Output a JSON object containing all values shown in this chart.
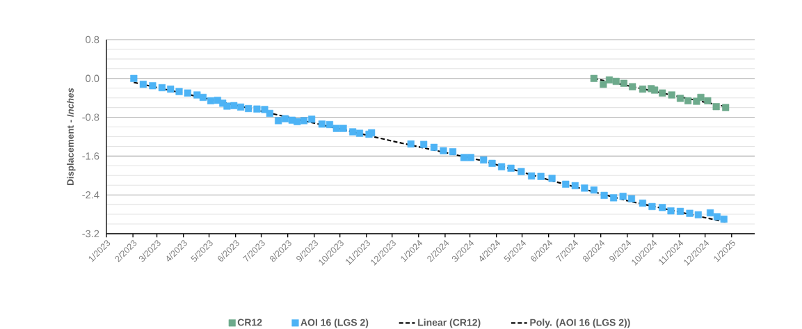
{
  "chart_data": {
    "type": "scatter",
    "ylabel": "Displacement - *Inches*",
    "xlim": [
      "2023-01-01",
      "2025-01-28"
    ],
    "xticks": [
      {
        "value": "2023-01-01",
        "label": "1/2023"
      },
      {
        "value": "2023-02-01",
        "label": "2/2023"
      },
      {
        "value": "2023-03-01",
        "label": "3/2023"
      },
      {
        "value": "2023-04-01",
        "label": "4/2023"
      },
      {
        "value": "2023-05-01",
        "label": "5/2023"
      },
      {
        "value": "2023-06-01",
        "label": "6/2023"
      },
      {
        "value": "2023-07-01",
        "label": "7/2023"
      },
      {
        "value": "2023-08-01",
        "label": "8/2023"
      },
      {
        "value": "2023-09-01",
        "label": "9/2023"
      },
      {
        "value": "2023-10-01",
        "label": "10/2023"
      },
      {
        "value": "2023-11-01",
        "label": "11/2023"
      },
      {
        "value": "2023-12-01",
        "label": "12/2023"
      },
      {
        "value": "2024-01-01",
        "label": "1/2024"
      },
      {
        "value": "2024-02-01",
        "label": "2/2024"
      },
      {
        "value": "2024-03-01",
        "label": "3/2024"
      },
      {
        "value": "2024-04-01",
        "label": "4/2024"
      },
      {
        "value": "2024-05-01",
        "label": "5/2024"
      },
      {
        "value": "2024-06-01",
        "label": "6/2024"
      },
      {
        "value": "2024-07-01",
        "label": "7/2024"
      },
      {
        "value": "2024-08-01",
        "label": "8/2024"
      },
      {
        "value": "2024-09-01",
        "label": "9/2024"
      },
      {
        "value": "2024-10-01",
        "label": "10/2024"
      },
      {
        "value": "2024-11-01",
        "label": "11/2024"
      },
      {
        "value": "2024-12-01",
        "label": "12/2024"
      },
      {
        "value": "2025-01-01",
        "label": "1/2025"
      }
    ],
    "ylim": [
      -3.2,
      0.8
    ],
    "yticks": [
      {
        "value": -3.2,
        "label": "-3.2"
      },
      {
        "value": -2.4,
        "label": "-2.4"
      },
      {
        "value": -1.6,
        "label": "-1.6"
      },
      {
        "value": -0.8,
        "label": "-0.8"
      },
      {
        "value": 0,
        "label": "0.0"
      },
      {
        "value": 0.8,
        "label": "0.8"
      }
    ],
    "grid": "y",
    "legend": "bottom",
    "series": [
      {
        "name": "CR12",
        "marker": "square",
        "color": "#6daa8c",
        "x": [
          "2024-07-24",
          "2024-08-04",
          "2024-08-11",
          "2024-08-19",
          "2024-08-28",
          "2024-09-07",
          "2024-09-19",
          "2024-09-29",
          "2024-10-03",
          "2024-10-12",
          "2024-10-23",
          "2024-11-02",
          "2024-11-11",
          "2024-11-21",
          "2024-11-26",
          "2024-12-04",
          "2024-12-14",
          "2024-12-25"
        ],
        "values": [
          0.0,
          -0.12,
          -0.03,
          -0.06,
          -0.1,
          -0.17,
          -0.22,
          -0.21,
          -0.24,
          -0.3,
          -0.34,
          -0.41,
          -0.46,
          -0.47,
          -0.39,
          -0.46,
          -0.58,
          -0.6
        ]
      },
      {
        "name": "AOI 16 (LGS 2)",
        "marker": "square",
        "color": "#4db3f5",
        "x": [
          "2023-02-02",
          "2023-02-13",
          "2023-02-24",
          "2023-03-07",
          "2023-03-17",
          "2023-03-27",
          "2023-04-06",
          "2023-04-17",
          "2023-04-24",
          "2023-05-03",
          "2023-05-11",
          "2023-05-17",
          "2023-05-22",
          "2023-05-30",
          "2023-06-07",
          "2023-06-16",
          "2023-06-26",
          "2023-07-05",
          "2023-07-11",
          "2023-07-21",
          "2023-07-29",
          "2023-08-06",
          "2023-08-12",
          "2023-08-20",
          "2023-08-29",
          "2023-09-10",
          "2023-09-19",
          "2023-09-27",
          "2023-10-05",
          "2023-10-16",
          "2023-10-24",
          "2023-11-04",
          "2023-11-07",
          "2023-12-23",
          "2024-01-07",
          "2024-01-19",
          "2024-01-30",
          "2024-02-10",
          "2024-02-23",
          "2024-03-02",
          "2024-03-17",
          "2024-03-27",
          "2024-04-07",
          "2024-04-18",
          "2024-04-30",
          "2024-05-12",
          "2024-05-23",
          "2024-06-05",
          "2024-06-21",
          "2024-07-02",
          "2024-07-13",
          "2024-07-24",
          "2024-08-05",
          "2024-08-16",
          "2024-08-27",
          "2024-09-06",
          "2024-09-19",
          "2024-09-30",
          "2024-10-12",
          "2024-10-22",
          "2024-11-02",
          "2024-11-13",
          "2024-11-23",
          "2024-12-07",
          "2024-12-15",
          "2024-12-23"
        ],
        "values": [
          0.0,
          -0.12,
          -0.15,
          -0.19,
          -0.22,
          -0.27,
          -0.3,
          -0.34,
          -0.39,
          -0.46,
          -0.45,
          -0.51,
          -0.57,
          -0.56,
          -0.59,
          -0.62,
          -0.63,
          -0.64,
          -0.72,
          -0.87,
          -0.83,
          -0.86,
          -0.89,
          -0.87,
          -0.84,
          -0.94,
          -0.95,
          -1.03,
          -1.03,
          -1.1,
          -1.13,
          -1.15,
          -1.12,
          -1.35,
          -1.36,
          -1.42,
          -1.49,
          -1.51,
          -1.63,
          -1.63,
          -1.68,
          -1.75,
          -1.82,
          -1.85,
          -1.92,
          -2.01,
          -2.02,
          -2.06,
          -2.18,
          -2.21,
          -2.26,
          -2.3,
          -2.41,
          -2.46,
          -2.43,
          -2.48,
          -2.57,
          -2.64,
          -2.66,
          -2.73,
          -2.74,
          -2.78,
          -2.81,
          -2.77,
          -2.85,
          -2.9
        ]
      },
      {
        "name": "Linear (CR12)",
        "type": "line",
        "marker": "none",
        "line_style": "dashed",
        "color": "#000000",
        "x": [
          "2024-07-24",
          "2024-12-25"
        ],
        "values": [
          0.0,
          -0.58
        ]
      },
      {
        "name": "Poly. (AOI 16 (LGS 2))",
        "type": "line",
        "marker": "none",
        "line_style": "dashed",
        "color": "#000000",
        "x": [
          "2023-02-02",
          "2023-04-17",
          "2023-07-15",
          "2023-10-01",
          "2023-12-01",
          "2024-03-17",
          "2024-06-05",
          "2024-09-01",
          "2024-12-25"
        ],
        "values": [
          -0.08,
          -0.37,
          -0.73,
          -1.04,
          -1.29,
          -1.7,
          -2.11,
          -2.52,
          -2.96
        ]
      }
    ]
  }
}
